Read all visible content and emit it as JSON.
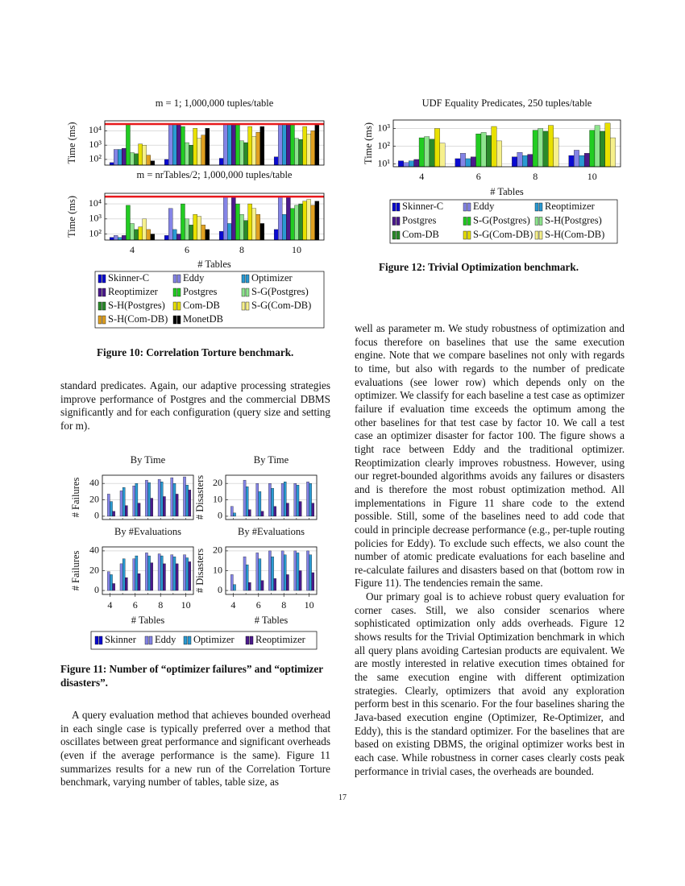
{
  "chart_data": [
    {
      "type": "bar",
      "title": "m = 1; 1,000,000 tuples/table",
      "ylabel": "Time (ms)",
      "log_scale": true,
      "grid": true,
      "categories": [
        null,
        null,
        null,
        null
      ],
      "ylim": [
        40,
        50000
      ],
      "yticks": [
        {
          "value": 100,
          "label": "10²"
        },
        {
          "value": 1000,
          "label": "10³"
        },
        {
          "value": 10000,
          "label": "10⁴"
        }
      ],
      "reference_line": {
        "value": 30000,
        "color": "#e8191c"
      },
      "series": [
        {
          "name": "Skinner-C",
          "color": "#0a0ad0",
          "values": [
            60,
            100,
            120,
            150
          ]
        },
        {
          "name": "Eddy",
          "color": "#8484e6",
          "values": [
            500,
            30000,
            30000,
            30000
          ]
        },
        {
          "name": "Optimizer",
          "color": "#2a9ad2",
          "values": [
            500,
            30000,
            30000,
            30000
          ]
        },
        {
          "name": "Reoptimizer",
          "color": "#4b1a8c",
          "values": [
            600,
            30000,
            30000,
            30000
          ]
        },
        {
          "name": "Postgres",
          "color": "#22cc22",
          "values": [
            30000,
            20000,
            25000,
            25000
          ]
        },
        {
          "name": "S-G(Postgres)",
          "color": "#8ee48e",
          "values": [
            300,
            1500,
            2000,
            3000
          ]
        },
        {
          "name": "S-H(Postgres)",
          "color": "#2a8a2a",
          "values": [
            250,
            1000,
            1500,
            2500
          ]
        },
        {
          "name": "Com-DB",
          "color": "#e8e000",
          "values": [
            1200,
            15000,
            20000,
            20000
          ]
        },
        {
          "name": "S-G(Com-DB)",
          "color": "#f6f08c",
          "values": [
            1000,
            3000,
            4000,
            6000
          ]
        },
        {
          "name": "S-H(Com-DB)",
          "color": "#e0a020",
          "values": [
            200,
            5000,
            8000,
            10000
          ]
        },
        {
          "name": "MonetDB",
          "color": "#000000",
          "values": [
            80,
            15000,
            20000,
            25000
          ]
        }
      ]
    },
    {
      "type": "bar",
      "title": "m = nrTables/2; 1,000,000 tuples/table",
      "ylabel": "Time (ms)",
      "xlabel": "# Tables",
      "log_scale": true,
      "grid": true,
      "categories": [
        "4",
        "6",
        "8",
        "10"
      ],
      "ylim": [
        40,
        50000
      ],
      "yticks": [
        {
          "value": 100,
          "label": "10²"
        },
        {
          "value": 1000,
          "label": "10³"
        },
        {
          "value": 10000,
          "label": "10⁴"
        }
      ],
      "reference_line": {
        "value": 30000,
        "color": "#e8191c"
      },
      "series": [
        {
          "color": "#0a0ad0",
          "values": [
            60,
            80,
            150,
            200
          ]
        },
        {
          "color": "#8484e6",
          "values": [
            80,
            5000,
            30000,
            30000
          ]
        },
        {
          "color": "#2a9ad2",
          "values": [
            60,
            200,
            500,
            2000
          ]
        },
        {
          "color": "#4b1a8c",
          "values": [
            80,
            100,
            30000,
            30000
          ]
        },
        {
          "color": "#22cc22",
          "values": [
            8000,
            10000,
            10000,
            5000
          ]
        },
        {
          "color": "#8ee48e",
          "values": [
            500,
            1000,
            2000,
            8000
          ]
        },
        {
          "color": "#2a8a2a",
          "values": [
            200,
            400,
            800,
            10000
          ]
        },
        {
          "color": "#e8e000",
          "values": [
            300,
            2000,
            10000,
            15000
          ]
        },
        {
          "color": "#f6f08c",
          "values": [
            1000,
            1500,
            5000,
            20000
          ]
        },
        {
          "color": "#e0a020",
          "values": [
            200,
            400,
            2000,
            8000
          ]
        },
        {
          "color": "#000000",
          "values": [
            100,
            200,
            500,
            15000
          ]
        }
      ]
    },
    {
      "type": "bar",
      "title": "By Time",
      "ylabel": "# Failures",
      "grid": true,
      "x": [
        4,
        5,
        6,
        7,
        8,
        9,
        10
      ],
      "xlim": [
        3.4,
        10.6
      ],
      "ylim": [
        -4,
        50
      ],
      "yticks": [
        0,
        20,
        40
      ],
      "series": [
        {
          "name": "Skinner",
          "color": "#0a0ad0",
          "values": [
            0,
            0,
            0,
            0,
            0,
            0,
            0
          ]
        },
        {
          "name": "Eddy",
          "color": "#8484e6",
          "values": [
            27,
            31,
            37,
            44,
            45,
            47,
            48
          ]
        },
        {
          "name": "Optimizer",
          "color": "#2a9ad2",
          "values": [
            18,
            35,
            40,
            41,
            42,
            40,
            38
          ]
        },
        {
          "name": "Reoptimizer",
          "color": "#4b1a8c",
          "values": [
            6,
            13,
            16,
            22,
            24,
            27,
            32
          ]
        }
      ]
    },
    {
      "type": "bar",
      "title": "By Time",
      "ylabel": "# Disasters",
      "grid": true,
      "x": [
        4,
        5,
        6,
        7,
        8,
        9,
        10
      ],
      "xlim": [
        3.4,
        10.6
      ],
      "ylim": [
        -2,
        25
      ],
      "yticks": [
        0,
        10,
        20
      ],
      "series": [
        {
          "color": "#0a0ad0",
          "values": [
            0,
            0,
            0,
            0,
            0,
            0,
            0
          ]
        },
        {
          "color": "#8484e6",
          "values": [
            6,
            22,
            20,
            20,
            20,
            20,
            21
          ]
        },
        {
          "color": "#2a9ad2",
          "values": [
            2,
            18,
            15,
            17,
            21,
            19,
            20
          ]
        },
        {
          "color": "#4b1a8c",
          "values": [
            0,
            4,
            3,
            6,
            8,
            9,
            8
          ]
        }
      ]
    },
    {
      "type": "bar",
      "title": "By #Evaluations",
      "ylabel": "# Failures",
      "xlabel": "# Tables",
      "grid": true,
      "x": [
        4,
        5,
        6,
        7,
        8,
        9,
        10
      ],
      "xlim": [
        3.4,
        10.6
      ],
      "xticks": [
        4,
        6,
        8,
        10
      ],
      "ylim": [
        -4,
        44
      ],
      "yticks": [
        0,
        20,
        40
      ],
      "series": [
        {
          "color": "#0a0ad0",
          "values": [
            0,
            0,
            0,
            0,
            0,
            0,
            0
          ]
        },
        {
          "color": "#8484e6",
          "values": [
            19,
            27,
            32,
            38,
            37,
            36,
            36
          ]
        },
        {
          "color": "#2a9ad2",
          "values": [
            16,
            32,
            35,
            35,
            35,
            34,
            33
          ]
        },
        {
          "color": "#4b1a8c",
          "values": [
            7,
            13,
            17,
            28,
            27,
            27,
            29
          ]
        }
      ]
    },
    {
      "type": "bar",
      "title": "By #Evaluations",
      "ylabel": "# Disasters",
      "xlabel": "# Tables",
      "grid": true,
      "x": [
        4,
        5,
        6,
        7,
        8,
        9,
        10
      ],
      "xlim": [
        3.4,
        10.6
      ],
      "xticks": [
        4,
        6,
        8,
        10
      ],
      "ylim": [
        -2,
        22
      ],
      "yticks": [
        0,
        10,
        20
      ],
      "series": [
        {
          "color": "#0a0ad0",
          "values": [
            0,
            0,
            0,
            0,
            0,
            0,
            0
          ]
        },
        {
          "color": "#8484e6",
          "values": [
            8,
            17,
            19,
            20,
            20,
            20,
            20
          ]
        },
        {
          "color": "#2a9ad2",
          "values": [
            3,
            13,
            16,
            17,
            18,
            19,
            18
          ]
        },
        {
          "color": "#4b1a8c",
          "values": [
            0,
            4,
            5,
            6,
            8,
            10,
            9
          ]
        }
      ]
    },
    {
      "type": "bar",
      "title": "UDF Equality Predicates, 250 tuples/table",
      "ylabel": "Time (ms)",
      "xlabel": "# Tables",
      "log_scale": true,
      "grid": true,
      "categories": [
        "4",
        "6",
        "8",
        "10"
      ],
      "ylim": [
        7,
        3000
      ],
      "yticks": [
        {
          "value": 10,
          "label": "10¹"
        },
        {
          "value": 100,
          "label": "10²"
        },
        {
          "value": 1000,
          "label": "10³"
        }
      ],
      "series": [
        {
          "name": "Skinner-C",
          "color": "#0a0ad0",
          "values": [
            15,
            20,
            25,
            30
          ]
        },
        {
          "name": "Eddy",
          "color": "#8484e6",
          "values": [
            12,
            40,
            45,
            60
          ]
        },
        {
          "name": "Reoptimizer",
          "color": "#2a9ad2",
          "values": [
            15,
            20,
            30,
            30
          ]
        },
        {
          "name": "Postgres",
          "color": "#4b1a8c",
          "values": [
            18,
            25,
            35,
            40
          ]
        },
        {
          "name": "S-G(Postgres)",
          "color": "#22cc22",
          "values": [
            300,
            500,
            800,
            800
          ]
        },
        {
          "name": "S-H(Postgres)",
          "color": "#8ee48e",
          "values": [
            350,
            600,
            1000,
            1500
          ]
        },
        {
          "name": "Com-DB",
          "color": "#2a8a2a",
          "values": [
            250,
            400,
            700,
            700
          ]
        },
        {
          "name": "S-G(Com-DB)",
          "color": "#e8e000",
          "values": [
            1000,
            1300,
            1500,
            2000
          ]
        },
        {
          "name": "S-H(Com-DB)",
          "color": "#f6f08c",
          "values": [
            150,
            200,
            300,
            300
          ]
        }
      ]
    }
  ],
  "captions": [
    "Figure 10: Correlation Torture benchmark.",
    "Figure 11: Number of “optimizer failures” and “optimizer disasters”.",
    "Figure 12: Trivial Optimization benchmark."
  ],
  "body": {
    "left": [
      "standard predicates. Again, our adaptive processing strategies improve performance of Postgres and the commercial DBMS significantly and for each configuration (query size and setting for m).",
      "A query evaluation method that achieves bounded overhead in each single case is typically preferred over a method that oscillates between great performance and significant overheads (even if the average performance is the same). Figure 11 summarizes results for a new run of the Correlation Torture benchmark, varying number of tables, table size, as"
    ],
    "right": [
      "well as parameter m. We study robustness of optimization and focus therefore on baselines that use the same execution engine. Note that we compare baselines not only with regards to time, but also with regards to the number of predicate evaluations (see lower row) which depends only on the optimizer. We classify for each baseline a test case as optimizer failure if evaluation time exceeds the optimum among the other baselines for that test case by factor 10. We call a test case an optimizer disaster for factor 100. The figure shows a tight race between Eddy and the traditional optimizer. Reoptimization clearly improves robustness. However, using our regret-bounded algorithms avoids any failures or disasters and is therefore the most robust optimization method. All implementations in Figure 11 share code to the extend possible. Still, some of the baselines need to add code that could in principle decrease performance (e.g., per-tuple routing policies for Eddy). To exclude such effects, we also count the number of atomic predicate evaluations for each baseline and re-calculate failures and disasters based on that (bottom row in Figure 11). The tendencies remain the same.",
      "Our primary goal is to achieve robust query evaluation for corner cases. Still, we also consider scenarios where sophisticated optimization only adds overheads. Figure 12 shows results for the Trivial Optimization benchmark in which all query plans avoiding Cartesian products are equivalent. We are mostly interested in relative execution times obtained for the same execution engine with different optimization strategies. Clearly, optimizers that avoid any exploration perform best in this scenario. For the four baselines sharing the Java-based execution engine (Optimizer, Re-Optimizer, and Eddy), this is the standard optimizer. For the baselines that are based on existing DBMS, the original optimizer works best in each case. While robustness in corner cases clearly costs peak performance in trivial cases, the overheads are bounded."
    ]
  },
  "page_number": "17"
}
